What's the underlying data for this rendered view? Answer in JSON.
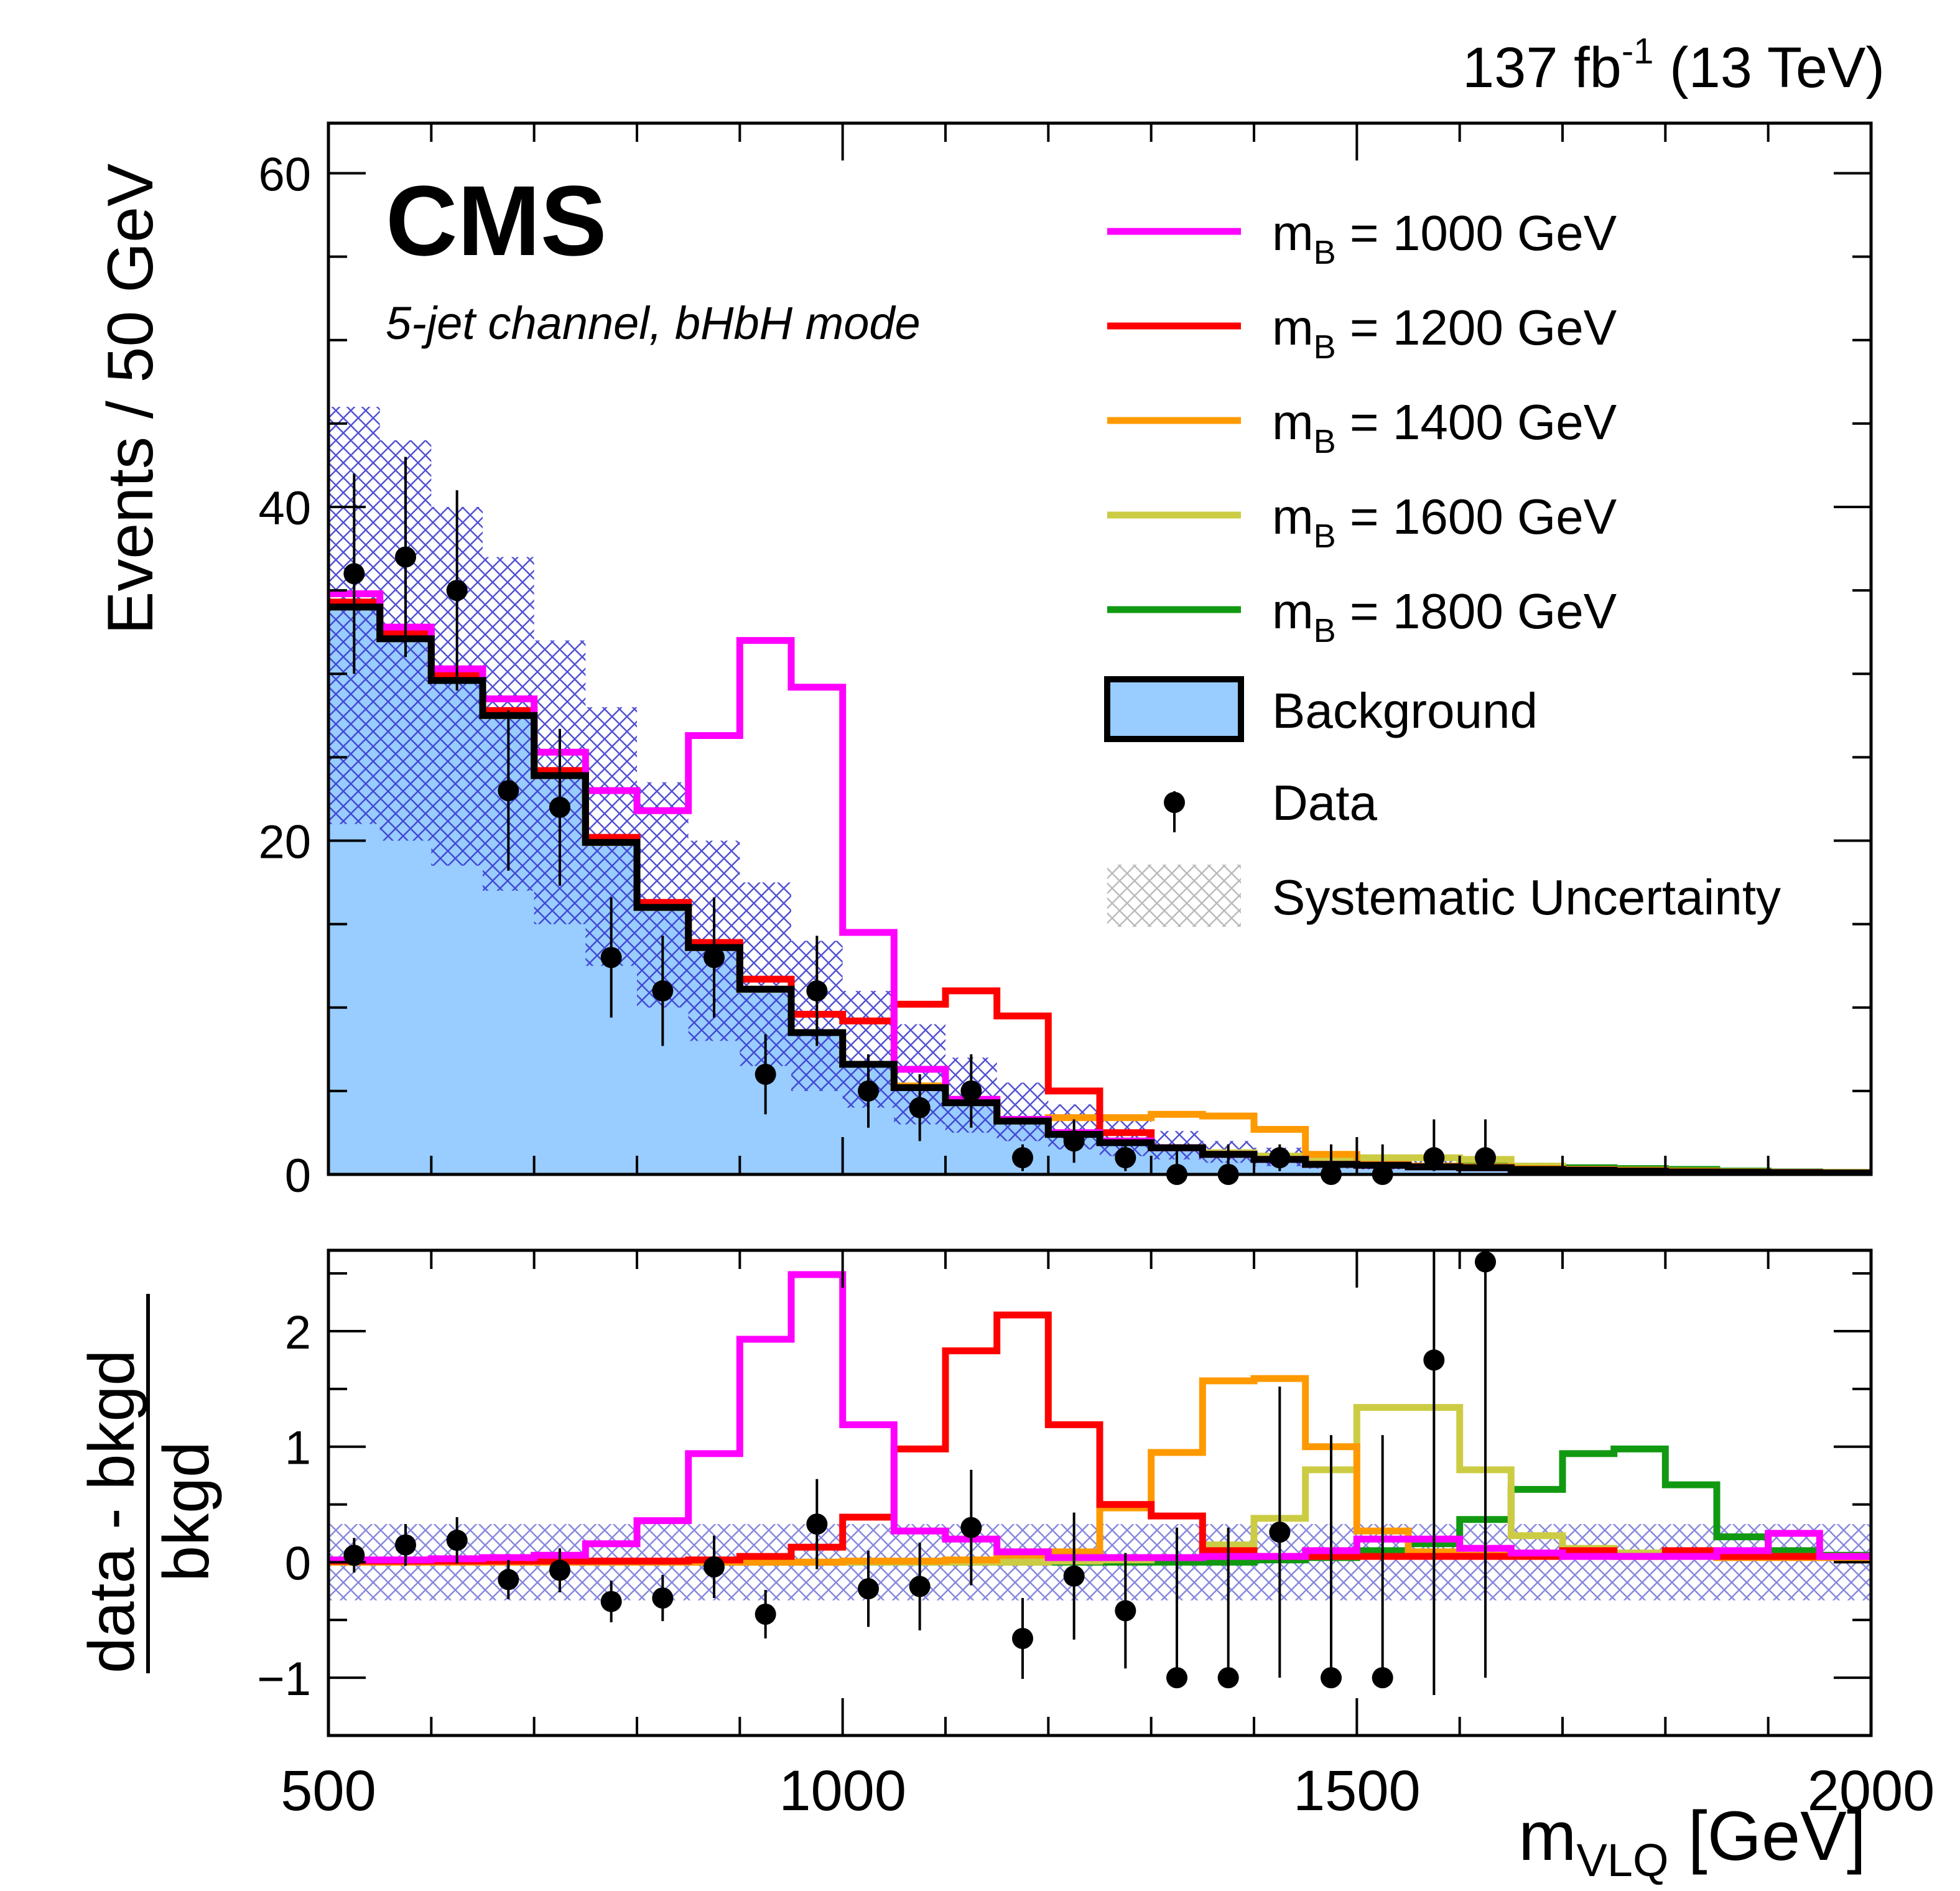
{
  "chart_data": {
    "type": "histogram",
    "lumi_label": "137 fb",
    "lumi_sup": "-1",
    "lumi_energy": "(13 TeV)",
    "experiment": "CMS",
    "subtitle": "5-jet channel, bHbH mode",
    "ylabel_main": "Events / 50 GeV",
    "ylabel_ratio_num": "data - bkgd",
    "ylabel_ratio_den": "bkgd",
    "xlabel_main": "m",
    "xlabel_sub": "VLQ",
    "xlabel_unit": "[GeV]",
    "xlim": [
      500,
      2000
    ],
    "xticks": [
      500,
      1000,
      1500,
      2000
    ],
    "main_ylim": [
      0,
      63
    ],
    "main_yticks": [
      0,
      20,
      40,
      60
    ],
    "ratio_ylim": [
      -1.5,
      2.7
    ],
    "ratio_yticks": [
      -1,
      0,
      1,
      2
    ],
    "ratio_ytick_labels": [
      "−1",
      "0",
      "1",
      "2"
    ],
    "bin_edges": [
      500,
      550,
      600,
      650,
      700,
      750,
      800,
      850,
      900,
      950,
      1000,
      1050,
      1100,
      1150,
      1200,
      1250,
      1300,
      1350,
      1400,
      1450,
      1500,
      1550,
      1600,
      1650,
      1700,
      1750,
      1800,
      1850,
      1900,
      1950,
      2000
    ],
    "background": [
      34.0,
      32.1,
      29.6,
      27.5,
      23.9,
      19.9,
      16.0,
      13.6,
      11.1,
      8.5,
      6.6,
      5.2,
      4.3,
      3.2,
      2.4,
      1.9,
      1.6,
      1.2,
      0.9,
      0.6,
      0.55,
      0.45,
      0.4,
      0.3,
      0.25,
      0.2,
      0.15,
      0.12,
      0.1,
      0.08
    ],
    "background_syst_up": [
      46.0,
      44.0,
      40.0,
      37.0,
      32.0,
      28.0,
      23.5,
      20.0,
      17.5,
      14.0,
      11.0,
      9.0,
      7.0,
      5.5,
      4.2,
      3.2,
      2.6,
      2.0,
      1.6,
      1.2,
      1.0,
      0.9,
      0.8,
      0.7,
      0.6,
      0.5,
      0.4,
      0.35,
      0.3,
      0.25
    ],
    "background_syst_down": [
      21.0,
      20.0,
      18.5,
      17.0,
      15.0,
      12.5,
      10.0,
      8.0,
      6.5,
      5.0,
      4.0,
      3.0,
      2.5,
      2.0,
      1.5,
      1.1,
      0.9,
      0.7,
      0.5,
      0.35,
      0.3,
      0.25,
      0.2,
      0.15,
      0.12,
      0.1,
      0.08,
      0.06,
      0.05,
      0.04
    ],
    "signals": [
      {
        "label": "m",
        "sub": "B",
        "rest": " = 1000 GeV",
        "color": "#ff00ff",
        "stack": [
          34.8,
          32.8,
          30.3,
          28.5,
          25.3,
          23.0,
          21.8,
          26.3,
          32.0,
          29.2,
          14.5,
          6.3,
          4.5,
          3.3,
          2.5,
          2.0,
          1.6,
          1.2,
          0.9,
          0.6,
          0.55,
          0.45,
          0.4,
          0.3,
          0.25,
          0.2,
          0.15,
          0.12,
          0.1,
          0.08
        ],
        "ratio": [
          0.02,
          0.02,
          0.03,
          0.04,
          0.06,
          0.16,
          0.36,
          0.94,
          1.93,
          2.49,
          1.19,
          0.27,
          0.2,
          0.09,
          0.04,
          0.04,
          0.04,
          0.05,
          0.05,
          0.1,
          0.2,
          0.2,
          0.12,
          0.08,
          0.05,
          0.05,
          0.05,
          0.1,
          0.25,
          0.05
        ]
      },
      {
        "label": "m",
        "sub": "B",
        "rest": " = 1200 GeV",
        "color": "#ff0000",
        "stack": [
          34.3,
          32.4,
          29.9,
          27.8,
          24.2,
          20.2,
          16.3,
          13.9,
          11.7,
          9.6,
          9.2,
          10.2,
          11.0,
          9.5,
          5.0,
          2.5,
          1.6,
          1.2,
          0.9,
          0.6,
          0.55,
          0.45,
          0.4,
          0.3,
          0.25,
          0.2,
          0.15,
          0.12,
          0.1,
          0.08
        ],
        "ratio": [
          0.01,
          0.01,
          0.01,
          0.01,
          0.01,
          0.01,
          0.01,
          0.02,
          0.05,
          0.13,
          0.39,
          0.98,
          1.83,
          2.14,
          1.19,
          0.5,
          0.4,
          0.1,
          0.05,
          0.05,
          0.05,
          0.05,
          0.05,
          0.05,
          0.1,
          0.05,
          0.1,
          0.05,
          0.05,
          0.05
        ]
      },
      {
        "label": "m",
        "sub": "B",
        "rest": " = 1400 GeV",
        "color": "#ff9900",
        "stack": [
          34.0,
          32.1,
          29.6,
          27.5,
          23.9,
          19.9,
          16.0,
          13.6,
          11.1,
          8.5,
          6.6,
          5.3,
          4.4,
          3.3,
          3.4,
          3.4,
          3.6,
          3.5,
          2.7,
          1.2,
          0.6,
          0.5,
          0.45,
          0.35,
          0.3,
          0.25,
          0.2,
          0.15,
          0.12,
          0.1
        ],
        "ratio": [
          0,
          0,
          0,
          0,
          0,
          0,
          0,
          0,
          0,
          0,
          0.01,
          0.01,
          0.02,
          0.06,
          0.09,
          0.47,
          0.95,
          1.57,
          1.59,
          1.0,
          0.27,
          0.09,
          0.06,
          0.06,
          0.05,
          0.05,
          0.05,
          0.04,
          0.04,
          0.04
        ]
      },
      {
        "label": "m",
        "sub": "B",
        "rest": " = 1600 GeV",
        "color": "#cccc44",
        "stack": [
          34.0,
          32.1,
          29.6,
          27.5,
          23.9,
          19.9,
          16.0,
          13.6,
          11.1,
          8.5,
          6.6,
          5.2,
          4.3,
          3.2,
          2.4,
          1.9,
          1.6,
          1.3,
          1.1,
          1.0,
          1.0,
          1.0,
          0.9,
          0.5,
          0.3,
          0.25,
          0.2,
          0.15,
          0.12,
          0.1
        ],
        "ratio": [
          0,
          0,
          0,
          0,
          0,
          0,
          0,
          0,
          0,
          0,
          0,
          0,
          0,
          0,
          0.01,
          0.02,
          0.04,
          0.15,
          0.38,
          0.8,
          1.34,
          1.34,
          0.8,
          0.23,
          0.12,
          0.08,
          0.06,
          0.05,
          0.05,
          0.05
        ]
      },
      {
        "label": "m",
        "sub": "B",
        "rest": " = 1800 GeV",
        "color": "#119911",
        "stack": [
          34.0,
          32.1,
          29.6,
          27.5,
          23.9,
          19.9,
          16.0,
          13.6,
          11.1,
          8.5,
          6.6,
          5.2,
          4.3,
          3.2,
          2.4,
          1.9,
          1.6,
          1.2,
          0.9,
          0.6,
          0.56,
          0.5,
          0.5,
          0.45,
          0.4,
          0.35,
          0.3,
          0.2,
          0.15,
          0.12
        ],
        "ratio": [
          0,
          0,
          0,
          0,
          0,
          0,
          0,
          0,
          0,
          0,
          0,
          0,
          0,
          0,
          0,
          0,
          0,
          0,
          0.02,
          0.04,
          0.1,
          0.16,
          0.37,
          0.63,
          0.94,
          0.98,
          0.67,
          0.22,
          0.1,
          0.06
        ]
      }
    ],
    "data_x": [
      525,
      575,
      625,
      675,
      725,
      775,
      825,
      875,
      925,
      975,
      1025,
      1075,
      1125,
      1175,
      1225,
      1275,
      1325,
      1375,
      1425,
      1475,
      1525,
      1575,
      1625
    ],
    "data_y": [
      36,
      37,
      35,
      23,
      22,
      13,
      11,
      13,
      6,
      11,
      5,
      4,
      5,
      1,
      2,
      1,
      0,
      0,
      1,
      0,
      0,
      1,
      1
    ],
    "data_err_lo": [
      6,
      6,
      6,
      4.8,
      4.7,
      3.6,
      3.3,
      3.6,
      2.4,
      3.3,
      2.2,
      2.0,
      2.2,
      0.8,
      1.3,
      0.8,
      0,
      0,
      0.8,
      0,
      0,
      0.8,
      0.8
    ],
    "data_err_hi": [
      6,
      6,
      6,
      4.8,
      4.7,
      3.6,
      3.3,
      3.6,
      2.4,
      3.3,
      2.2,
      2.0,
      2.2,
      0.8,
      1.3,
      0.8,
      1.8,
      1.8,
      0.8,
      1.8,
      1.8,
      2.3,
      2.3
    ],
    "ratio_data": [
      0.06,
      0.15,
      0.19,
      -0.15,
      -0.07,
      -0.34,
      -0.31,
      -0.04,
      -0.45,
      0.33,
      -0.23,
      -0.21,
      0.3,
      -0.66,
      -0.12,
      -0.42,
      -1.0,
      -1.0,
      0.26,
      -1.0,
      -1.0,
      1.75,
      2.6
    ],
    "ratio_err_lo": [
      0.15,
      0.18,
      0.2,
      0.17,
      0.19,
      0.18,
      0.2,
      0.27,
      0.21,
      0.39,
      0.33,
      0.38,
      0.5,
      0.35,
      0.55,
      0.5,
      0,
      0,
      1.26,
      0,
      0,
      2.9,
      3.6
    ],
    "ratio_err_hi": [
      0.15,
      0.18,
      0.2,
      0.17,
      0.19,
      0.18,
      0.2,
      0.27,
      0.21,
      0.39,
      0.33,
      0.38,
      0.5,
      0.35,
      0.55,
      0.5,
      1.3,
      1.3,
      1.26,
      2.1,
      2.1,
      2.9,
      3.6
    ],
    "ratio_syst_band": 0.33,
    "legend": {
      "background": "Background",
      "data": "Data",
      "systematic": "Systematic Uncertainty"
    },
    "colors": {
      "background_fill": "#99ccff",
      "background_line": "#000000",
      "syst_hatch": "#3333cc",
      "legend_hatch": "#bbbbbb"
    }
  }
}
